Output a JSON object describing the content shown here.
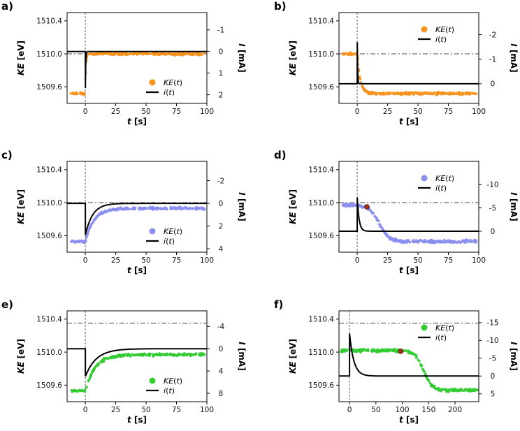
{
  "chart_data": [
    {
      "panel": "a)",
      "type": "scatter",
      "point_color": "#f7931e",
      "x_ticks": [
        "0",
        "25",
        "50",
        "75",
        "100"
      ],
      "xlim": [
        -15,
        100
      ],
      "left_ticks": [
        "1510.4",
        "1510.0",
        "1509.6"
      ],
      "ylim_left": [
        1509.4,
        1510.5
      ],
      "right_ticks": [
        "-1",
        "0",
        "1",
        "2"
      ],
      "ylim_right": [
        -1.8,
        2.4
      ],
      "xlabel_main": "t",
      "xlabel_unit": " [s]",
      "ylabel_main": "KE",
      "ylabel_unit": " [eV]",
      "y2label_main": "I",
      "y2label_unit": " [mA]",
      "legend": [
        "KE(t)",
        "i(t)"
      ],
      "legend_pos": "bottom-right",
      "ref_level": 1510.0,
      "ke_before": 1509.52,
      "ke_after": 1510.0,
      "ke_tau": 0.5,
      "current": {
        "after": 0.0,
        "peak": 2.0,
        "tau": 0.3
      }
    },
    {
      "panel": "b)",
      "type": "scatter",
      "point_color": "#f7931e",
      "x_ticks": [
        "0",
        "25",
        "50",
        "75",
        "100"
      ],
      "xlim": [
        -15,
        100
      ],
      "left_ticks": [
        "1510.4",
        "1510.0",
        "1509.6"
      ],
      "ylim_left": [
        1509.4,
        1510.5
      ],
      "right_ticks": [
        "-2",
        "-1",
        "0"
      ],
      "ylim_right": [
        -2.9,
        0.8
      ],
      "xlabel_main": "t",
      "xlabel_unit": " [s]",
      "ylabel_main": "KE",
      "ylabel_unit": " [eV]",
      "y2label_main": "I",
      "y2label_unit": " [mA]",
      "legend": [
        "KE(t)",
        "i(t)"
      ],
      "legend_pos": "top-right",
      "ref_level": 1510.0,
      "ke_before": 1510.0,
      "ke_after": 1509.52,
      "ke_tau": 2.5,
      "current": {
        "after": 0.0,
        "peak": -2.0,
        "tau": 0.3
      }
    },
    {
      "panel": "c)",
      "type": "scatter",
      "point_color": "#8a8ff0",
      "x_ticks": [
        "0",
        "25",
        "50",
        "75",
        "100"
      ],
      "xlim": [
        -15,
        100
      ],
      "left_ticks": [
        "1510.4",
        "1510.0",
        "1509.6"
      ],
      "ylim_left": [
        1509.4,
        1510.5
      ],
      "right_ticks": [
        "-2",
        "0",
        "2",
        "4"
      ],
      "ylim_right": [
        -3.7,
        4.3
      ],
      "xlabel_main": "t",
      "xlabel_unit": " [s]",
      "ylabel_main": "KE",
      "ylabel_unit": " [eV]",
      "y2label_main": "I",
      "y2label_unit": " [mA]",
      "legend": [
        "KE(t)",
        "i(t)"
      ],
      "legend_pos": "bottom-right",
      "ref_level": 1510.0,
      "ke_before": 1509.53,
      "ke_after": 1509.93,
      "ke_tau": 7,
      "current": {
        "after": 0.0,
        "peak": 2.8,
        "tau": 6
      }
    },
    {
      "panel": "d)",
      "type": "scatter",
      "point_color": "#8a8ff0",
      "x_ticks": [
        "0",
        "25",
        "50",
        "75",
        "100"
      ],
      "xlim": [
        -15,
        100
      ],
      "left_ticks": [
        "1510.4",
        "1510.0",
        "1509.6"
      ],
      "ylim_left": [
        1509.4,
        1510.5
      ],
      "right_ticks": [
        "-10",
        "-5",
        "0"
      ],
      "ylim_right": [
        -15,
        4.5
      ],
      "xlabel_main": "t",
      "xlabel_unit": " [s]",
      "ylabel_main": "KE",
      "ylabel_unit": " [eV]",
      "y2label_main": "I",
      "y2label_unit": " [mA]",
      "legend": [
        "KE(t)",
        "i(t)"
      ],
      "legend_pos": "top-right",
      "ref_level": 1510.0,
      "ke_before": 1509.97,
      "ke_after": 1509.53,
      "ke_mid": 18,
      "ke_width": 4,
      "marker": {
        "x": 8,
        "y": 1509.95
      },
      "current": {
        "after": 0.0,
        "peak": -7.5,
        "tau": 1.5
      }
    },
    {
      "panel": "e)",
      "type": "scatter",
      "point_color": "#33cc33",
      "x_ticks": [
        "0",
        "25",
        "50",
        "75",
        "100"
      ],
      "xlim": [
        -15,
        100
      ],
      "left_ticks": [
        "1510.4",
        "1510.0",
        "1509.6"
      ],
      "ylim_left": [
        1509.4,
        1510.5
      ],
      "right_ticks": [
        "-4",
        "0",
        "4",
        "8"
      ],
      "ylim_right": [
        -6.8,
        9.5
      ],
      "xlabel_main": "t",
      "xlabel_unit": " [s]",
      "ylabel_main": "KE",
      "ylabel_unit": " [eV]",
      "y2label_main": "I",
      "y2label_unit": " [mA]",
      "legend": [
        "KE(t)",
        "i(t)"
      ],
      "legend_pos": "bottom-right",
      "ref_level": 1510.35,
      "ke_before": 1509.53,
      "ke_after": 1509.97,
      "ke_tau": 8,
      "current": {
        "after": 0.0,
        "peak": 5.0,
        "tau": 9
      }
    },
    {
      "panel": "f)",
      "type": "scatter",
      "point_color": "#33cc33",
      "x_ticks": [
        "0",
        "50",
        "100",
        "150",
        "200"
      ],
      "xlim": [
        -20,
        245
      ],
      "left_ticks": [
        "1510.4",
        "1510.0",
        "1509.6"
      ],
      "ylim_left": [
        1509.4,
        1510.5
      ],
      "right_ticks": [
        "-15",
        "-10",
        "-5",
        "0",
        "5"
      ],
      "ylim_right": [
        -18.3,
        7.2
      ],
      "xlabel_main": "t",
      "xlabel_unit": " [s]",
      "ylabel_main": "KE",
      "ylabel_unit": " [eV]",
      "y2label_main": "I",
      "y2label_unit": " [mA]",
      "legend": [
        "KE(t)",
        "i(t)"
      ],
      "legend_pos": "top-right",
      "ref_level": 1510.35,
      "ke_before": 1510.02,
      "ke_after": 1509.54,
      "ke_mid": 140,
      "ke_width": 8,
      "marker": {
        "x": 97,
        "y": 1510.01
      },
      "current": {
        "after": 0.0,
        "peak": -12.0,
        "tau": 8
      }
    }
  ]
}
